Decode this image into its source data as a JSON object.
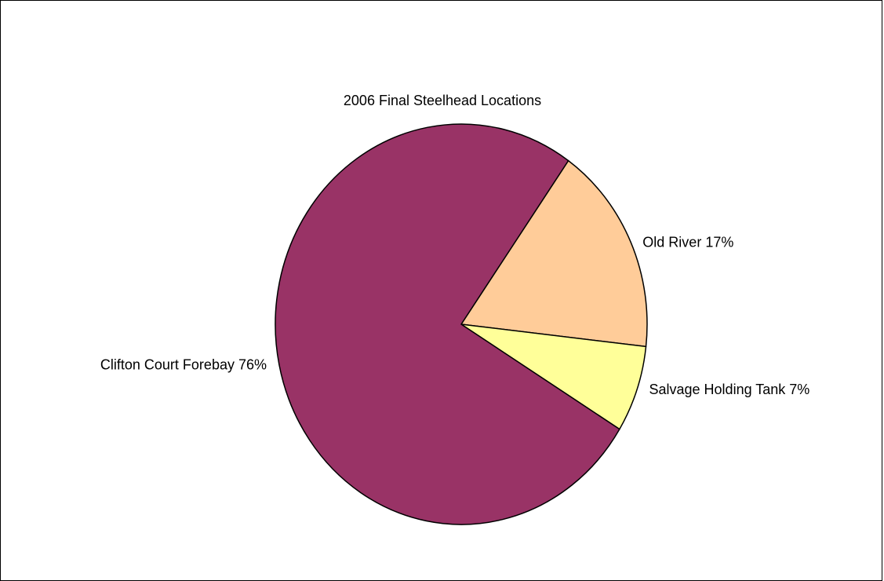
{
  "chart_data": {
    "type": "pie",
    "title": "2006 Final Steelhead Locations",
    "slices": [
      {
        "label": "Clifton Court Forebay 76%",
        "name": "Clifton Court Forebay",
        "value": 76,
        "color": "#993366"
      },
      {
        "label": "Old River 17%",
        "name": "Old River",
        "value": 17,
        "color": "#FFCC99"
      },
      {
        "label": "Salvage Holding Tank 7%",
        "name": "Salvage Holding Tank",
        "value": 7,
        "color": "#FFFF99"
      }
    ],
    "slice_outline_color": "#000000",
    "legend": "none"
  }
}
